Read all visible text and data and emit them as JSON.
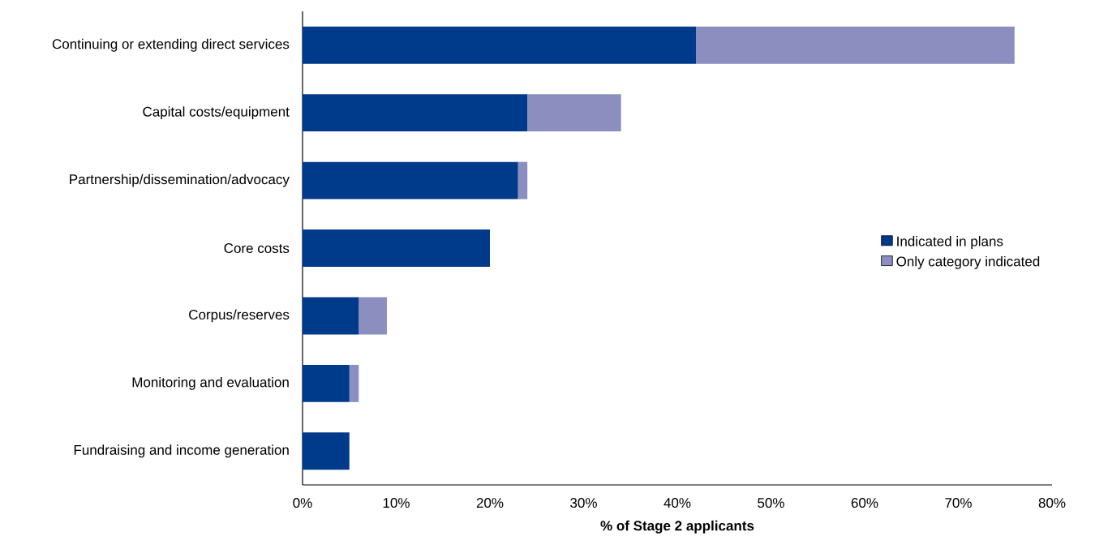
{
  "chart_data": {
    "type": "bar",
    "orientation": "horizontal",
    "stacked": true,
    "xlabel": "% of Stage 2 applicants",
    "categories": [
      "Continuing or extending direct services",
      "Capital costs/equipment",
      "Partnership/dissemination/advocacy",
      "Core costs",
      "Corpus/reserves",
      "Monitoring and evaluation",
      "Fundraising and income generation"
    ],
    "series": [
      {
        "name": "Indicated in plans",
        "color": "#003a8a",
        "values": [
          42,
          24,
          23,
          20,
          6,
          5,
          5
        ]
      },
      {
        "name": "Only category indicated",
        "color": "#8c8ec0",
        "values": [
          34,
          10,
          1,
          0,
          3,
          1,
          0
        ]
      }
    ],
    "xlim": [
      0,
      80
    ],
    "xticks": [
      {
        "value": 0,
        "label": "0%"
      },
      {
        "value": 10,
        "label": "10%"
      },
      {
        "value": 20,
        "label": "20%"
      },
      {
        "value": 30,
        "label": "30%"
      },
      {
        "value": 40,
        "label": "40%"
      },
      {
        "value": 50,
        "label": "50%"
      },
      {
        "value": 60,
        "label": "60%"
      },
      {
        "value": 70,
        "label": "70%"
      },
      {
        "value": 80,
        "label": "80%"
      }
    ],
    "grid": false,
    "legend": "right"
  }
}
